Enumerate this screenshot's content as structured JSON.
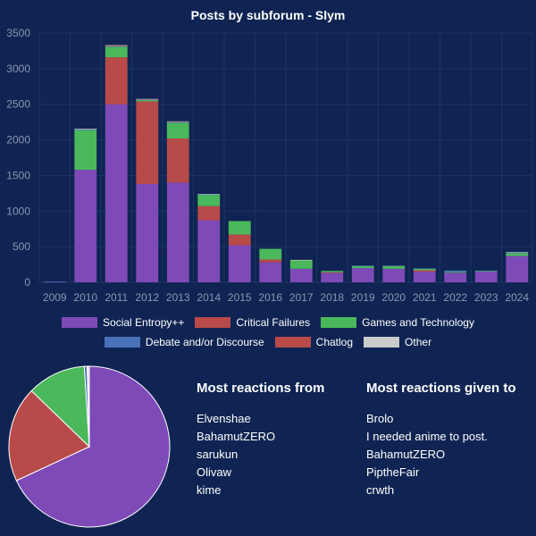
{
  "chart_data": [
    {
      "type": "bar",
      "stacked": true,
      "title": "Posts by subforum - Slym",
      "categories": [
        "2009",
        "2010",
        "2011",
        "2012",
        "2013",
        "2014",
        "2015",
        "2016",
        "2017",
        "2018",
        "2019",
        "2020",
        "2021",
        "2022",
        "2023",
        "2024"
      ],
      "ylim": [
        0,
        3500
      ],
      "yticks": [
        0,
        500,
        1000,
        1500,
        2000,
        2500,
        3000,
        3500
      ],
      "grid": true,
      "legend_position": "bottom",
      "series": [
        {
          "name": "Social Entropy++",
          "color": "#7e4ab8",
          "values": [
            5,
            1580,
            2500,
            1380,
            1400,
            870,
            520,
            280,
            190,
            130,
            200,
            190,
            150,
            135,
            150,
            370
          ]
        },
        {
          "name": "Critical Failures",
          "color": "#b84a4a",
          "values": [
            0,
            0,
            660,
            1160,
            620,
            200,
            150,
            40,
            0,
            10,
            0,
            0,
            20,
            0,
            0,
            0
          ]
        },
        {
          "name": "Games and Technology",
          "color": "#4ab85b",
          "values": [
            0,
            560,
            150,
            20,
            220,
            160,
            190,
            150,
            120,
            20,
            30,
            40,
            20,
            10,
            10,
            40
          ]
        },
        {
          "name": "Debate and/or Discourse",
          "color": "#4a72b8",
          "values": [
            5,
            5,
            5,
            5,
            10,
            5,
            0,
            0,
            0,
            0,
            5,
            5,
            5,
            20,
            5,
            10
          ]
        },
        {
          "name": "Chatlog",
          "color": "#b84a4a",
          "values": [
            0,
            0,
            5,
            5,
            5,
            0,
            0,
            0,
            0,
            0,
            0,
            0,
            0,
            0,
            0,
            0
          ]
        },
        {
          "name": "Other",
          "color": "#cccccc",
          "values": [
            0,
            10,
            10,
            5,
            5,
            5,
            0,
            0,
            5,
            0,
            0,
            0,
            0,
            0,
            0,
            5
          ]
        }
      ]
    },
    {
      "type": "pie",
      "labels": [
        "Social Entropy++",
        "Critical Failures",
        "Games and Technology",
        "Debate and/or Discourse",
        "Chatlog",
        "Other"
      ],
      "values": [
        10220,
        2875,
        1770,
        85,
        15,
        50
      ],
      "colors": [
        "#7e4ab8",
        "#b84a4a",
        "#4ab85b",
        "#4a72b8",
        "#b84a4a",
        "#cccccc"
      ]
    }
  ],
  "reactions_from": {
    "title": "Most reactions from",
    "items": [
      "Elvenshae",
      "BahamutZERO",
      "sarukun",
      "Olivaw",
      "kime"
    ]
  },
  "reactions_to": {
    "title": "Most reactions given to",
    "items": [
      "Brolo",
      "I needed anime to post.",
      "BahamutZERO",
      "PiptheFair",
      "crwth"
    ]
  },
  "colors": {
    "background": "#0f2452",
    "grid": "#1c3463",
    "axis_text": "#8a97b3"
  }
}
